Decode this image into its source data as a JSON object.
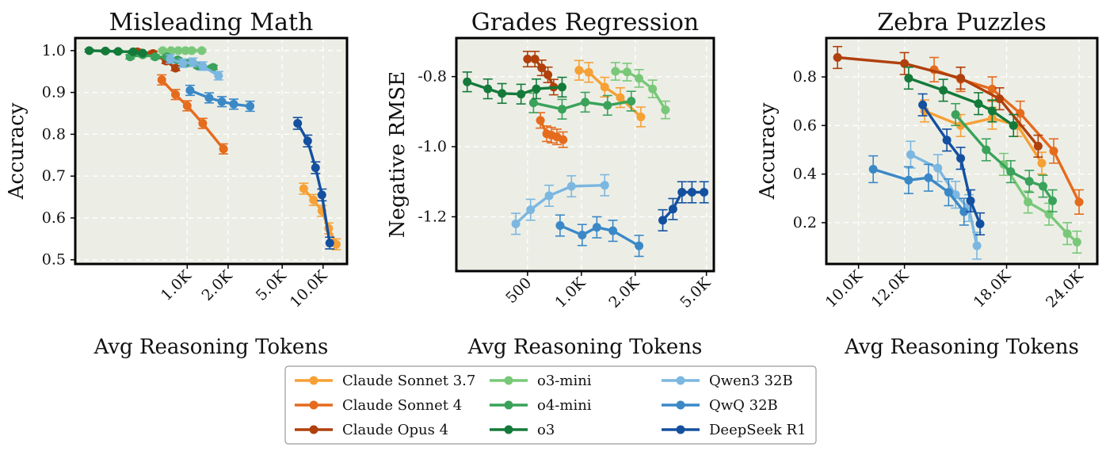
{
  "series_styles": [
    {
      "name": "Claude Sonnet 3.7",
      "color": "#f6a035"
    },
    {
      "name": "Claude Sonnet 4",
      "color": "#e56b1d"
    },
    {
      "name": "Claude Opus 4",
      "color": "#b0400c"
    },
    {
      "name": "o3-mini",
      "color": "#79c879"
    },
    {
      "name": "o4-mini",
      "color": "#3aa25a"
    },
    {
      "name": "o3",
      "color": "#147a3a"
    },
    {
      "name": "Qwen3 32B",
      "color": "#7bb7e0"
    },
    {
      "name": "QwQ 32B",
      "color": "#3b88c7"
    },
    {
      "name": "DeepSeek R1",
      "color": "#1450a0"
    }
  ],
  "legend": {
    "placement": "bottom-center",
    "entries": [
      "Claude Sonnet 3.7",
      "Claude Sonnet 4",
      "Claude Opus 4",
      "o3-mini",
      "o4-mini",
      "o3",
      "Qwen3 32B",
      "QwQ 32B",
      "DeepSeek R1"
    ]
  },
  "background_color": "#eceee6",
  "chart_data": [
    {
      "type": "line",
      "title": "Misleading Math",
      "xlabel": "Avg Reasoning Tokens",
      "ylabel": "Accuracy",
      "xscale": "log",
      "xlim": [
        150,
        15000
      ],
      "ylim": [
        0.49,
        1.03
      ],
      "xticks": [
        {
          "value": 1000,
          "label": "1.0K"
        },
        {
          "value": 2000,
          "label": "2.0K"
        },
        {
          "value": 5000,
          "label": "5.0K"
        },
        {
          "value": 10000,
          "label": "10.0K"
        }
      ],
      "yticks": [
        {
          "value": 0.5,
          "label": "0.5"
        },
        {
          "value": 0.6,
          "label": "0.6"
        },
        {
          "value": 0.7,
          "label": "0.7"
        },
        {
          "value": 0.8,
          "label": "0.8"
        },
        {
          "value": 0.9,
          "label": "0.9"
        },
        {
          "value": 1.0,
          "label": "1.0"
        }
      ],
      "grid": true,
      "series": [
        {
          "name": "Claude Sonnet 3.7",
          "x": [
            7200,
            8500,
            9800,
            11000,
            12500
          ],
          "y": [
            0.67,
            0.643,
            0.617,
            0.575,
            0.537
          ],
          "err": [
            0.013,
            0.013,
            0.013,
            0.013,
            0.013
          ]
        },
        {
          "name": "Claude Sonnet 4",
          "x": [
            650,
            820,
            1000,
            1300,
            1850
          ],
          "y": [
            0.93,
            0.895,
            0.868,
            0.826,
            0.765
          ],
          "err": [
            0.012,
            0.012,
            0.012,
            0.012,
            0.012
          ]
        },
        {
          "name": "Claude Opus 4",
          "x": [
            430,
            560,
            700,
            820
          ],
          "y": [
            0.997,
            0.993,
            0.975,
            0.958
          ],
          "err": [
            0.006,
            0.006,
            0.006,
            0.006
          ]
        },
        {
          "name": "o3-mini",
          "x": [
            660,
            760,
            860,
            970,
            1080,
            1280
          ],
          "y": [
            1.0,
            1.0,
            1.0,
            1.0,
            1.0,
            1.0
          ],
          "err": [
            0.003,
            0.003,
            0.003,
            0.003,
            0.003,
            0.003
          ]
        },
        {
          "name": "o4-mini",
          "x": [
            380,
            470,
            580,
            710,
            850,
            1000,
            1200,
            1550
          ],
          "y": [
            0.985,
            0.99,
            0.985,
            0.985,
            0.978,
            0.97,
            0.963,
            0.96
          ],
          "err": [
            0.005,
            0.005,
            0.005,
            0.005,
            0.005,
            0.005,
            0.005,
            0.005
          ]
        },
        {
          "name": "o3",
          "x": [
            190,
            250,
            310,
            400,
            470
          ],
          "y": [
            1.0,
            0.999,
            0.998,
            0.997,
            0.994
          ],
          "err": [
            0.003,
            0.003,
            0.003,
            0.003,
            0.003
          ]
        },
        {
          "name": "Qwen3 32B",
          "x": [
            750,
            930,
            1100,
            1300,
            1700
          ],
          "y": [
            0.98,
            0.97,
            0.972,
            0.963,
            0.94
          ],
          "err": [
            0.01,
            0.01,
            0.01,
            0.01,
            0.01
          ]
        },
        {
          "name": "QwQ 32B",
          "x": [
            1050,
            1450,
            1800,
            2200,
            2900
          ],
          "y": [
            0.905,
            0.887,
            0.878,
            0.872,
            0.867
          ],
          "err": [
            0.012,
            0.012,
            0.012,
            0.012,
            0.012
          ]
        },
        {
          "name": "DeepSeek R1",
          "x": [
            6500,
            7700,
            8800,
            9800,
            11200
          ],
          "y": [
            0.826,
            0.784,
            0.72,
            0.655,
            0.54
          ],
          "err": [
            0.014,
            0.014,
            0.014,
            0.014,
            0.014
          ]
        }
      ]
    },
    {
      "type": "line",
      "title": "Grades Regression",
      "xlabel": "Avg Reasoning Tokens",
      "ylabel": "Negative RMSE",
      "xscale": "log",
      "xlim": [
        200,
        5500
      ],
      "ylim": [
        -1.355,
        -0.69
      ],
      "xticks": [
        {
          "value": 500,
          "label": "500"
        },
        {
          "value": 1000,
          "label": "1.0K"
        },
        {
          "value": 2000,
          "label": "2.0K"
        },
        {
          "value": 5000,
          "label": "5.0K"
        }
      ],
      "yticks": [
        {
          "value": -1.2,
          "label": "-1.2"
        },
        {
          "value": -1.0,
          "label": "-1.0"
        },
        {
          "value": -0.8,
          "label": "-0.8"
        }
      ],
      "grid": true,
      "series": [
        {
          "name": "Claude Sonnet 3.7",
          "x": [
            970,
            1100,
            1350,
            1650,
            2150
          ],
          "y": [
            -0.782,
            -0.788,
            -0.83,
            -0.86,
            -0.915
          ],
          "err": [
            0.028,
            0.028,
            0.028,
            0.028,
            0.028
          ]
        },
        {
          "name": "Claude Sonnet 4",
          "x": [
            590,
            640,
            680,
            730,
            790
          ],
          "y": [
            -0.925,
            -0.963,
            -0.967,
            -0.972,
            -0.98
          ],
          "err": [
            0.022,
            0.022,
            0.022,
            0.022,
            0.022
          ]
        },
        {
          "name": "Claude Opus 4",
          "x": [
            500,
            550,
            600,
            650,
            700
          ],
          "y": [
            -0.75,
            -0.75,
            -0.775,
            -0.795,
            -0.83
          ],
          "err": [
            0.022,
            0.022,
            0.022,
            0.022,
            0.022
          ]
        },
        {
          "name": "o3-mini",
          "x": [
            1550,
            1800,
            2100,
            2500,
            2950
          ],
          "y": [
            -0.785,
            -0.787,
            -0.805,
            -0.835,
            -0.895
          ],
          "err": [
            0.025,
            0.025,
            0.025,
            0.025,
            0.025
          ]
        },
        {
          "name": "o4-mini",
          "x": [
            540,
            780,
            1050,
            1400,
            1900
          ],
          "y": [
            -0.875,
            -0.893,
            -0.873,
            -0.882,
            -0.87
          ],
          "err": [
            0.028,
            0.028,
            0.028,
            0.028,
            0.028
          ]
        },
        {
          "name": "o3",
          "x": [
            230,
            300,
            360,
            460,
            560,
            780
          ],
          "y": [
            -0.815,
            -0.835,
            -0.848,
            -0.85,
            -0.835,
            -0.83
          ],
          "err": [
            0.028,
            0.028,
            0.028,
            0.028,
            0.028,
            0.028
          ]
        },
        {
          "name": "Qwen3 32B",
          "x": [
            430,
            520,
            660,
            880,
            1350
          ],
          "y": [
            -1.22,
            -1.18,
            -1.14,
            -1.113,
            -1.11
          ],
          "err": [
            0.03,
            0.03,
            0.03,
            0.03,
            0.03
          ]
        },
        {
          "name": "QwQ 32B",
          "x": [
            760,
            1010,
            1220,
            1500,
            2100
          ],
          "y": [
            -1.225,
            -1.252,
            -1.23,
            -1.24,
            -1.283
          ],
          "err": [
            0.03,
            0.03,
            0.03,
            0.03,
            0.03
          ]
        },
        {
          "name": "DeepSeek R1",
          "x": [
            2850,
            3250,
            3650,
            4150,
            4850
          ],
          "y": [
            -1.21,
            -1.178,
            -1.13,
            -1.13,
            -1.13
          ],
          "err": [
            0.03,
            0.03,
            0.03,
            0.03,
            0.03
          ]
        }
      ]
    },
    {
      "type": "line",
      "title": "Zebra Puzzles",
      "xlabel": "Avg Reasoning Tokens",
      "ylabel": "Accuracy",
      "xscale": "log",
      "xlim": [
        8800,
        25800
      ],
      "ylim": [
        0.03,
        0.96
      ],
      "xticks": [
        {
          "value": 10000,
          "label": "10.0K"
        },
        {
          "value": 12000,
          "label": "12.0K"
        },
        {
          "value": 18000,
          "label": "18.0K"
        },
        {
          "value": 24000,
          "label": "24.0K"
        }
      ],
      "yticks": [
        {
          "value": 0.2,
          "label": "0.2"
        },
        {
          "value": 0.4,
          "label": "0.4"
        },
        {
          "value": 0.6,
          "label": "0.6"
        },
        {
          "value": 0.8,
          "label": "0.8"
        }
      ],
      "grid": true,
      "series": [
        {
          "name": "Claude Sonnet 3.7",
          "x": [
            13000,
            15000,
            17000,
            18800,
            20700
          ],
          "y": [
            0.66,
            0.6,
            0.63,
            0.6,
            0.445
          ],
          "err": [
            0.045,
            0.045,
            0.045,
            0.045,
            0.045
          ]
        },
        {
          "name": "Claude Sonnet 4",
          "x": [
            13500,
            15000,
            17000,
            19000,
            21700,
            24000
          ],
          "y": [
            0.83,
            0.79,
            0.75,
            0.65,
            0.495,
            0.285
          ],
          "err": [
            0.05,
            0.05,
            0.05,
            0.05,
            0.05,
            0.05
          ]
        },
        {
          "name": "Claude Opus 4",
          "x": [
            9200,
            12000,
            15000,
            17500,
            20400
          ],
          "y": [
            0.88,
            0.855,
            0.795,
            0.71,
            0.515
          ],
          "err": [
            0.045,
            0.045,
            0.045,
            0.045,
            0.045
          ]
        },
        {
          "name": "o3-mini",
          "x": [
            17800,
            19600,
            21300,
            22900,
            23800
          ],
          "y": [
            0.44,
            0.285,
            0.235,
            0.155,
            0.12
          ],
          "err": [
            0.045,
            0.045,
            0.045,
            0.045,
            0.045
          ]
        },
        {
          "name": "o4-mini",
          "x": [
            14700,
            16600,
            18300,
            19700,
            20800,
            21600
          ],
          "y": [
            0.645,
            0.5,
            0.41,
            0.37,
            0.35,
            0.29
          ],
          "err": [
            0.045,
            0.045,
            0.045,
            0.045,
            0.045,
            0.045
          ]
        },
        {
          "name": "o3",
          "x": [
            12200,
            14000,
            16100,
            17000,
            18500
          ],
          "y": [
            0.795,
            0.745,
            0.69,
            0.66,
            0.6
          ],
          "err": [
            0.045,
            0.045,
            0.045,
            0.045,
            0.045
          ]
        },
        {
          "name": "Qwen3 32B",
          "x": [
            12300,
            13700,
            14700,
            15500,
            16000
          ],
          "y": [
            0.48,
            0.425,
            0.315,
            0.26,
            0.105
          ],
          "err": [
            0.055,
            0.055,
            0.055,
            0.055,
            0.055
          ]
        },
        {
          "name": "QwQ 32B",
          "x": [
            10600,
            12200,
            13200,
            14300,
            15200
          ],
          "y": [
            0.42,
            0.375,
            0.385,
            0.325,
            0.245
          ],
          "err": [
            0.055,
            0.055,
            0.055,
            0.055,
            0.055
          ]
        },
        {
          "name": "DeepSeek R1",
          "x": [
            12900,
            14200,
            15000,
            15600,
            16200
          ],
          "y": [
            0.685,
            0.54,
            0.465,
            0.29,
            0.195
          ],
          "err": [
            0.045,
            0.045,
            0.045,
            0.045,
            0.045
          ]
        }
      ]
    }
  ]
}
